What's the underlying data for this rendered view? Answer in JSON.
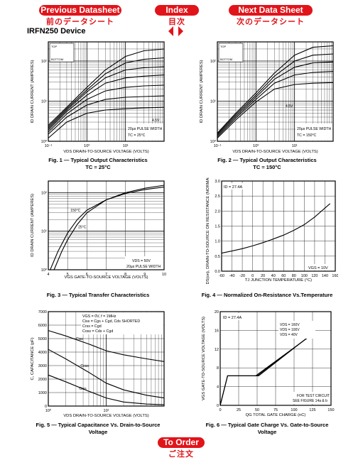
{
  "nav": {
    "prev_label": "Previous Datasheet",
    "prev_jp": "前のデータシート",
    "index_label": "Index",
    "index_jp": "目次",
    "next_label": "Next Data Sheet",
    "next_jp": "次のデータシート",
    "order_label": "To Order",
    "order_jp": "ご注文"
  },
  "device_title": "IRFN250 Device",
  "captions": {
    "fig1_a": "Fig. 1 — Typical Output Characteristics",
    "fig1_b": "TC = 25°C",
    "fig2_a": "Fig. 2 — Typical Output Characteristics",
    "fig2_b": "TC = 150°C",
    "fig3": "Fig. 3 — Typical Transfer Characteristics",
    "fig4": "Fig. 4 — Normalized On-Resistance Vs.Temperature",
    "fig5_a": "Fig. 5 — Typical Capacitance Vs. Drain-to-Source",
    "fig5_b": "Voltage",
    "fig6_a": "Fig. 6 — Typical Gate Charge Vs. Gate-to-Source",
    "fig6_b": "Voltage"
  },
  "chart_data": [
    {
      "type": "line",
      "id": "fig1",
      "xlabel": "VDS  DRAIN-TO-SOURCE VOLTAGE (VOLTS)",
      "ylabel": "ID  DRAIN CURRENT (AMPERES)",
      "x_scale": "log",
      "y_scale": "log",
      "xlim": [
        0.1,
        100
      ],
      "ylim": [
        1,
        300
      ],
      "x_ticks": [
        "10⁻¹",
        "10⁰",
        "10¹"
      ],
      "y_ticks": [
        "10⁰",
        "10¹",
        "10²"
      ],
      "legend_labels": [
        "TOP",
        "BOTTOM"
      ],
      "annotations": [
        "4.5V",
        "20µs PULSE WIDTH",
        "TC = 25°C"
      ],
      "series": [
        {
          "x": [
            0.1,
            0.3,
            1,
            3,
            10,
            30,
            100
          ],
          "y": [
            2.5,
            7,
            22,
            60,
            130,
            180,
            200
          ]
        },
        {
          "x": [
            0.1,
            0.3,
            1,
            3,
            10,
            30,
            100
          ],
          "y": [
            2.3,
            6.5,
            19,
            48,
            90,
            110,
            120
          ]
        },
        {
          "x": [
            0.1,
            0.3,
            1,
            3,
            10,
            30,
            100
          ],
          "y": [
            2.1,
            6,
            17,
            38,
            60,
            68,
            72
          ]
        },
        {
          "x": [
            0.1,
            0.3,
            1,
            3,
            10,
            30,
            100
          ],
          "y": [
            1.9,
            5.5,
            14,
            28,
            38,
            42,
            45
          ]
        },
        {
          "x": [
            0.1,
            0.3,
            1,
            3,
            10,
            30,
            100
          ],
          "y": [
            1.7,
            4.8,
            11,
            18,
            22,
            24,
            25
          ]
        },
        {
          "x": [
            0.1,
            0.3,
            1,
            3,
            10,
            30,
            100
          ],
          "y": [
            1.5,
            4,
            8,
            11,
            12.5,
            13,
            13.5
          ]
        },
        {
          "x": [
            0.1,
            0.3,
            1,
            3,
            10,
            30,
            100
          ],
          "y": [
            1.2,
            3,
            5,
            6,
            6.5,
            6.8,
            7
          ]
        }
      ]
    },
    {
      "type": "line",
      "id": "fig2",
      "xlabel": "VDS  DRAIN-TO-SOURCE VOLTAGE (VOLTS)",
      "ylabel": "ID  DRAIN CURRENT (AMPERES)",
      "x_scale": "log",
      "y_scale": "log",
      "xlim": [
        0.1,
        100
      ],
      "ylim": [
        1,
        300
      ],
      "x_ticks": [
        "10⁻¹",
        "10⁰",
        "10¹"
      ],
      "y_ticks": [
        "10⁰",
        "10¹",
        "10²"
      ],
      "legend_labels": [
        "TOP",
        "BOTTOM"
      ],
      "annotations": [
        "4.5V",
        "20µs PULSE WIDTH",
        "TC = 150°C"
      ],
      "series": [
        {
          "x": [
            0.1,
            0.3,
            1,
            3,
            10,
            30,
            100
          ],
          "y": [
            1.6,
            5,
            16,
            50,
            140,
            220,
            240
          ]
        },
        {
          "x": [
            0.1,
            0.3,
            1,
            3,
            10,
            30,
            100
          ],
          "y": [
            1.5,
            4.6,
            14,
            42,
            100,
            140,
            150
          ]
        },
        {
          "x": [
            0.1,
            0.3,
            1,
            3,
            10,
            30,
            100
          ],
          "y": [
            1.4,
            4.2,
            12.5,
            35,
            70,
            90,
            95
          ]
        },
        {
          "x": [
            0.1,
            0.3,
            1,
            3,
            10,
            30,
            100
          ],
          "y": [
            1.3,
            3.8,
            11,
            28,
            45,
            52,
            55
          ]
        },
        {
          "x": [
            0.1,
            0.3,
            1,
            3,
            10,
            30,
            100
          ],
          "y": [
            1.2,
            3.4,
            9.5,
            20,
            26,
            28,
            29
          ]
        }
      ]
    },
    {
      "type": "line",
      "id": "fig3",
      "xlabel": "VGS  GATE-TO-SOURCE VOLTAGE (VOLTS)",
      "ylabel": "ID  DRAIN CURRENT (AMPERES)",
      "x_scale": "linear",
      "y_scale": "log",
      "xlim": [
        4,
        10
      ],
      "ylim": [
        1,
        200
      ],
      "x_ticks": [
        "4",
        "5",
        "6",
        "7",
        "8",
        "9",
        "10"
      ],
      "y_ticks": [
        "10⁰",
        "10¹",
        "10²"
      ],
      "annotations": [
        "VDS = 50V",
        "20µs PULSE WIDTH"
      ],
      "series": [
        {
          "name": "150°C",
          "x": [
            4.1,
            4.5,
            5,
            5.5,
            6,
            7,
            8,
            9,
            10
          ],
          "y": [
            1,
            3,
            9,
            20,
            35,
            65,
            95,
            120,
            140
          ]
        },
        {
          "name": "25°C",
          "x": [
            4.3,
            4.7,
            5,
            5.5,
            6,
            7,
            8,
            9,
            10
          ],
          "y": [
            1,
            3,
            6,
            15,
            30,
            65,
            100,
            130,
            155
          ]
        }
      ]
    },
    {
      "type": "line",
      "id": "fig4",
      "xlabel": "TJ  JUNCTION TEMPERATURE (°C)",
      "ylabel": "RDS(on), DRAIN-TO-SOURCE ON RESISTANCE (NORMALIZED)",
      "xlim": [
        -60,
        160
      ],
      "ylim": [
        0,
        3.0
      ],
      "x_ticks": [
        "-60",
        "-40",
        "-20",
        "0",
        "20",
        "40",
        "60",
        "80",
        "100",
        "120",
        "140",
        "160"
      ],
      "y_ticks": [
        "0.0",
        "0.5",
        "1.0",
        "1.5",
        "2.0",
        "2.5",
        "3.0"
      ],
      "annotations": [
        "ID = 27.4A",
        "VGS = 10V"
      ],
      "series": [
        {
          "x": [
            -60,
            -40,
            -20,
            0,
            20,
            40,
            60,
            80,
            100,
            120,
            140,
            150
          ],
          "y": [
            0.6,
            0.67,
            0.75,
            0.84,
            0.95,
            1.07,
            1.2,
            1.36,
            1.55,
            1.8,
            2.1,
            2.25
          ]
        }
      ]
    },
    {
      "type": "line",
      "id": "fig5",
      "xlabel": "VDS  DRAIN-TO-SOURCE VOLTAGE (VOLTS)",
      "ylabel": "C, CAPACITANCE (pF)",
      "x_scale": "log",
      "y_scale": "linear",
      "xlim": [
        1,
        100
      ],
      "ylim": [
        0,
        7000
      ],
      "x_ticks": [
        "10⁰",
        "10¹"
      ],
      "y_ticks": [
        "0",
        "1000",
        "2000",
        "3000",
        "4000",
        "5000",
        "6000",
        "7000"
      ],
      "legend": [
        "VGS = 0V,  f = 1MHz",
        "Ciss = Cgs + Cgd,  Cds SHORTED",
        "Crss = Cgd",
        "Coss = Cds + Cgd"
      ],
      "series": [
        {
          "name": "Ciss",
          "x": [
            1,
            2,
            5,
            10,
            20,
            50,
            100
          ],
          "y": [
            5600,
            5200,
            4600,
            4100,
            3800,
            3500,
            3300
          ]
        },
        {
          "name": "Coss",
          "x": [
            1,
            2,
            5,
            10,
            20,
            50,
            100
          ],
          "y": [
            4200,
            3500,
            2500,
            1700,
            1200,
            800,
            600
          ]
        },
        {
          "name": "Crss",
          "x": [
            1,
            2,
            5,
            10,
            20,
            50,
            100
          ],
          "y": [
            2300,
            1800,
            1100,
            600,
            300,
            150,
            100
          ]
        }
      ]
    },
    {
      "type": "line",
      "id": "fig6",
      "xlabel": "QG  TOTAL GATE CHARGE (nC)",
      "ylabel": "VGS  GATE-TO-SOURCE VOLTAGE (VOLTS)",
      "xlim": [
        0,
        150
      ],
      "ylim": [
        0,
        20
      ],
      "x_ticks": [
        "0",
        "25",
        "50",
        "75",
        "100",
        "125",
        "150"
      ],
      "y_ticks": [
        "0",
        "4",
        "8",
        "12",
        "16",
        "20"
      ],
      "annotations": [
        "ID = 27.4A",
        "FOR TEST CIRCUIT",
        "SEE FIGURE 14a & b"
      ],
      "series": [
        {
          "name": "VDS = 160V",
          "x": [
            0,
            10,
            52,
            125
          ],
          "y": [
            0,
            6.3,
            6.3,
            15.3
          ]
        },
        {
          "name": "VDS = 100V",
          "x": [
            0,
            10,
            50,
            123
          ],
          "y": [
            0,
            6.3,
            6.3,
            15.0
          ]
        },
        {
          "name": "VDS = 40V",
          "x": [
            0,
            10,
            48,
            120
          ],
          "y": [
            0,
            6.3,
            6.3,
            14.6
          ]
        }
      ]
    }
  ]
}
